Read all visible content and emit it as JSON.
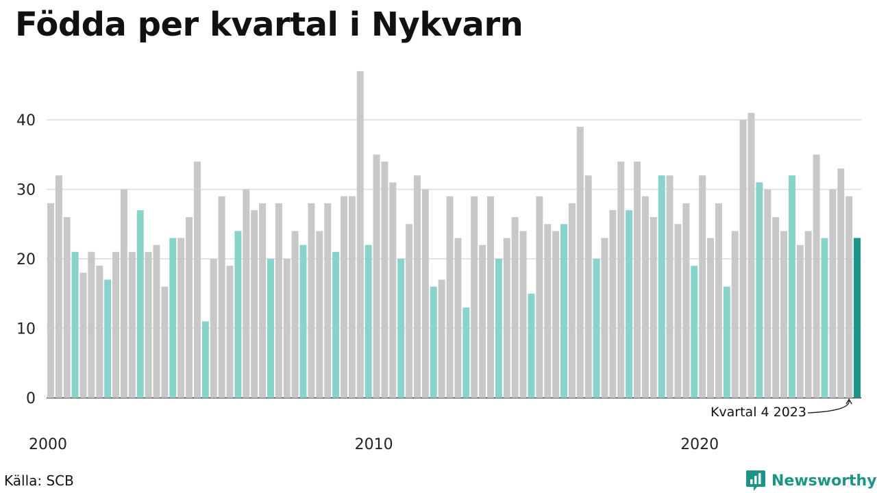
{
  "title": "Födda per kvartal i Nykvarn",
  "source": "Källa: SCB",
  "brand": "Newsworthy",
  "colors": {
    "other_quarter": "#c8c8c8",
    "q4_quarter": "#88d3cb",
    "latest_quarter": "#1e9488",
    "grid": "#e3e3e3",
    "baseline": "#333333"
  },
  "chart_data": {
    "type": "bar",
    "start_year": 2000,
    "quarters_per_year": 4,
    "values": [
      28,
      32,
      26,
      21,
      18,
      21,
      19,
      17,
      21,
      30,
      21,
      27,
      21,
      22,
      16,
      23,
      23,
      26,
      34,
      11,
      20,
      29,
      19,
      24,
      30,
      27,
      28,
      20,
      28,
      20,
      24,
      22,
      28,
      24,
      28,
      21,
      29,
      29,
      47,
      22,
      35,
      34,
      31,
      20,
      25,
      32,
      30,
      16,
      17,
      29,
      23,
      13,
      29,
      22,
      29,
      20,
      23,
      26,
      24,
      15,
      29,
      25,
      24,
      25,
      28,
      39,
      32,
      20,
      23,
      27,
      34,
      27,
      34,
      29,
      26,
      32,
      32,
      25,
      28,
      19,
      32,
      23,
      28,
      16,
      24,
      40,
      41,
      31,
      30,
      26,
      24,
      32,
      22,
      24,
      35,
      23,
      30,
      33,
      29,
      23
    ],
    "x_tick_labels": [
      "2000",
      "2010",
      "2020"
    ],
    "ylim": [
      0,
      47
    ],
    "y_ticks": [
      0,
      10,
      20,
      30,
      40
    ],
    "grid": true,
    "annotation": "Kvartal 4 2023"
  }
}
